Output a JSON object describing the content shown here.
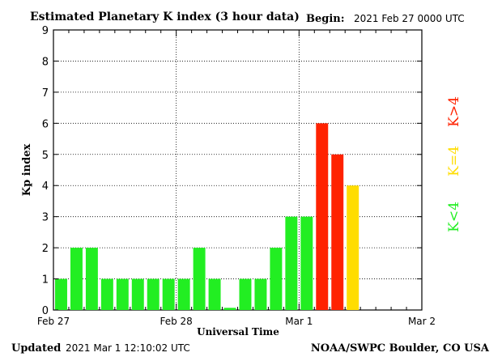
{
  "header": {
    "title": "Estimated Planetary K index (3 hour data)",
    "begin_label": "Begin:",
    "begin_value": "2021 Feb 27 0000 UTC"
  },
  "footer": {
    "updated_label": "Updated",
    "updated_value": "2021 Mar  1 12:10:02 UTC",
    "source": "NOAA/SWPC Boulder, CO USA"
  },
  "legend": {
    "items": [
      {
        "label": "K>4",
        "color": "#ff2200"
      },
      {
        "label": "K=4",
        "color": "#ffdd00"
      },
      {
        "label": "K<4",
        "color": "#22ee22"
      }
    ]
  },
  "chart_data": {
    "type": "bar",
    "title": "Estimated Planetary K index (3 hour data)",
    "xlabel": "Universal Time",
    "ylabel": "Kp index",
    "ylim": [
      0,
      9
    ],
    "yticks": [
      "0",
      "1",
      "2",
      "3",
      "4",
      "5",
      "6",
      "7",
      "8",
      "9"
    ],
    "xticks": [
      "Feb 27",
      "Feb 28",
      "Mar 1",
      "Mar 2"
    ],
    "grid": true,
    "legend_position": "right",
    "bars_per_day": 8,
    "values": [
      1,
      2,
      2,
      1,
      1,
      1,
      1,
      1,
      1,
      2,
      1,
      0.07,
      1,
      1,
      2,
      3,
      3,
      6,
      5,
      4
    ],
    "colors": {
      "low": "#22ee22",
      "equal4": "#ffdd00",
      "high": "#ff2200"
    }
  }
}
